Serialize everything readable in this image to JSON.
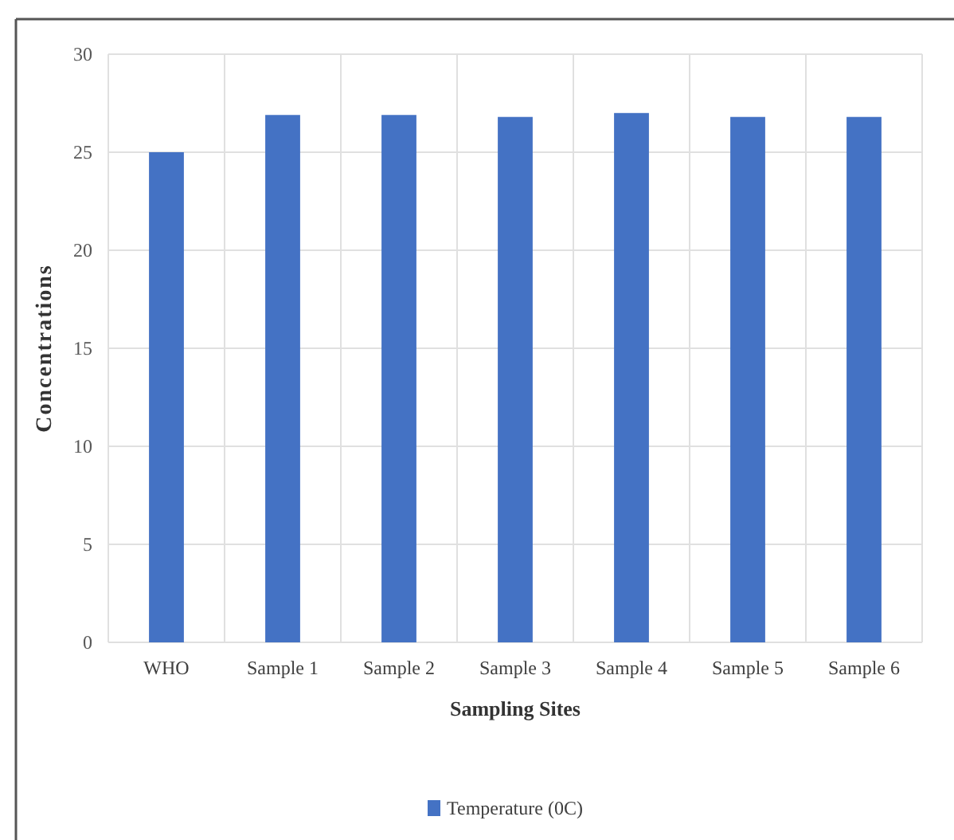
{
  "chart_data": {
    "type": "bar",
    "xlabel": "Sampling Sites",
    "ylabel": "Concentrations",
    "categories": [
      "WHO",
      "Sample 1",
      "Sample 2",
      "Sample 3",
      "Sample 4",
      "Sample 5",
      "Sample 6"
    ],
    "series": [
      {
        "name": "Temperature (0C)",
        "color": "#4472c4",
        "values": [
          25,
          26.9,
          26.9,
          26.8,
          27.0,
          26.8,
          26.8
        ]
      }
    ],
    "ylim": [
      0,
      30
    ],
    "yticks": [
      0,
      5,
      10,
      15,
      20,
      25,
      30
    ],
    "grid": true,
    "legend": "bottom"
  }
}
